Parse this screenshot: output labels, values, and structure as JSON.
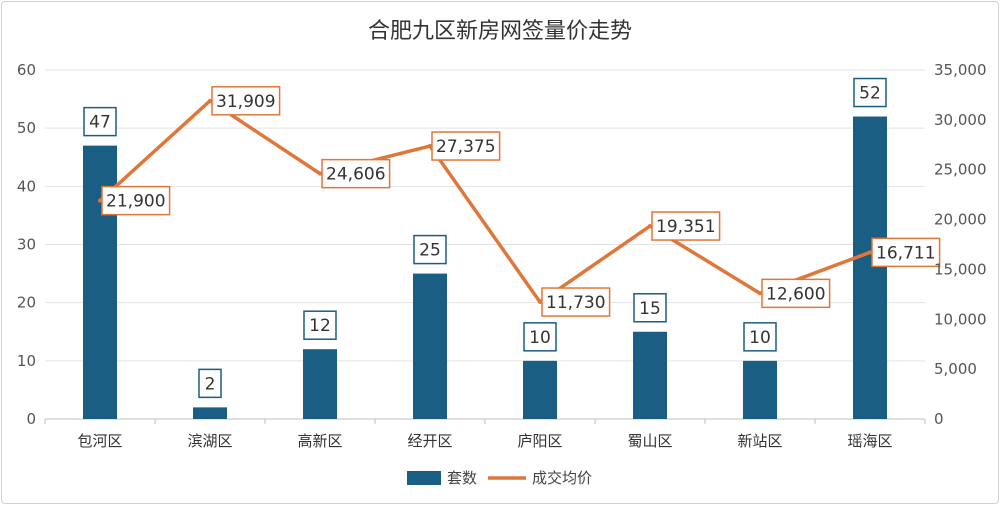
{
  "chart_data": {
    "type": "bar",
    "title": "合肥九区新房网签量价走势",
    "categories": [
      "包河区",
      "滨湖区",
      "高新区",
      "经开区",
      "庐阳区",
      "蜀山区",
      "新站区",
      "瑶海区"
    ],
    "series": [
      {
        "name": "套数",
        "type": "bar",
        "axis": "left",
        "color": "#1b5e84",
        "values": [
          47,
          2,
          12,
          25,
          10,
          15,
          10,
          52
        ]
      },
      {
        "name": "成交均价",
        "type": "line",
        "axis": "right",
        "color": "#e0773a",
        "values": [
          21900,
          31909,
          24606,
          27375,
          11730,
          19351,
          12600,
          16711
        ]
      }
    ],
    "y_left": {
      "ylim": [
        0,
        60
      ],
      "ticks": [
        0,
        10,
        20,
        30,
        40,
        50,
        60
      ]
    },
    "y_right": {
      "ylim": [
        0,
        35000
      ],
      "ticks": [
        0,
        5000,
        10000,
        15000,
        20000,
        25000,
        30000,
        35000
      ]
    },
    "grid": true,
    "legend": "bottom-center"
  }
}
